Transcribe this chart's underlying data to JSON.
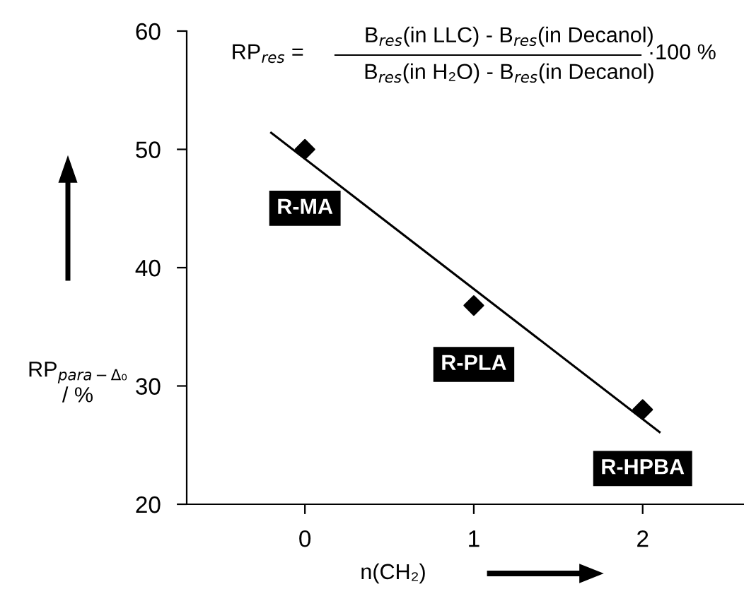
{
  "chart_data": {
    "type": "scatter",
    "xlabel": "n(CH₂)",
    "ylabel": "RP$_{para−Δ₀}$\n/ %",
    "x": [
      0,
      1,
      2
    ],
    "values": [
      50.0,
      36.8,
      28.0
    ],
    "color": "#000000",
    "marker": "diamond",
    "series": [
      {
        "type": "line",
        "x": [
          -0.2,
          2.1
        ],
        "values": [
          51.4,
          26.1
        ],
        "color": "#000000",
        "marker": "none"
      }
    ],
    "annotations": [
      "RP$_{res}$ =",
      "B$_{res}$(in LLC) - B$_{res}$(in Decanol)",
      "B$_{res}$(in H₂O) - B$_{res}$(in Decanol)",
      "·100 %",
      {
        "text": "R-MA",
        "x": 0,
        "y": 50.0
      },
      {
        "text": "R-PLA",
        "x": 1,
        "y": 36.8
      },
      {
        "text": "R-HPBA",
        "x": 2,
        "y": 28.0
      }
    ],
    "xlim": [
      -0.7,
      2.6
    ],
    "ylim": [
      20,
      60
    ],
    "xticks": [
      0,
      1,
      2
    ],
    "yticks": [
      20,
      30,
      40,
      50,
      60
    ],
    "grid": false,
    "legend": false
  }
}
